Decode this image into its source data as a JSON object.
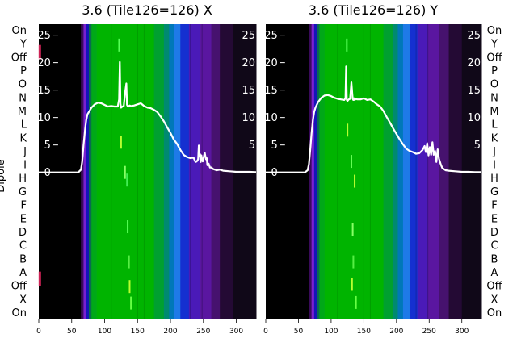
{
  "figure": {
    "ylabel_left": "Dipole"
  },
  "chart_data": [
    {
      "type": "heatmap",
      "title": "3.6 (Tile126=126) X",
      "row_labels": [
        "On",
        "Y",
        "Off",
        "P",
        "O",
        "N",
        "M",
        "L",
        "K",
        "J",
        "I",
        "H",
        "G",
        "F",
        "E",
        "D",
        "C",
        "B",
        "A",
        "Off",
        "X",
        "On"
      ],
      "xlim": [
        0,
        330
      ],
      "x_ticks": [
        0,
        50,
        100,
        150,
        200,
        250,
        300
      ],
      "overlay_ylim": [
        -26.8,
        27
      ],
      "overlay_y_ticks": [
        0,
        5,
        10,
        15,
        20,
        25
      ],
      "color_bands": [
        {
          "x0": 0,
          "x1": 64,
          "color": "#000000"
        },
        {
          "x0": 64,
          "x1": 68,
          "color": "#3a0a5a"
        },
        {
          "x0": 68,
          "x1": 72,
          "color": "#7a1fd0"
        },
        {
          "x0": 72,
          "x1": 76,
          "color": "#1515b8"
        },
        {
          "x0": 76,
          "x1": 80,
          "color": "#0a6a50"
        },
        {
          "x0": 80,
          "x1": 88,
          "color": "#00a818"
        },
        {
          "x0": 88,
          "x1": 175,
          "color": "#00b400"
        },
        {
          "x0": 175,
          "x1": 190,
          "color": "#00a030"
        },
        {
          "x0": 190,
          "x1": 198,
          "color": "#008a70"
        },
        {
          "x0": 198,
          "x1": 206,
          "color": "#0078b8"
        },
        {
          "x0": 206,
          "x1": 215,
          "color": "#1e7ae8"
        },
        {
          "x0": 215,
          "x1": 228,
          "color": "#1530d0"
        },
        {
          "x0": 228,
          "x1": 245,
          "color": "#4a1ab8"
        },
        {
          "x0": 245,
          "x1": 262,
          "color": "#5a16a0"
        },
        {
          "x0": 262,
          "x1": 275,
          "color": "#46126e"
        },
        {
          "x0": 275,
          "x1": 295,
          "color": "#240a34"
        },
        {
          "x0": 295,
          "x1": 330,
          "color": "#100818"
        }
      ],
      "overlay_line": {
        "color": "#ffffff",
        "x": [
          0,
          60,
          64,
          66,
          68,
          70,
          72,
          74,
          76,
          80,
          85,
          90,
          95,
          100,
          105,
          110,
          115,
          120,
          122,
          123,
          124,
          125,
          127,
          129,
          131,
          133,
          134,
          135,
          136,
          138,
          140,
          145,
          150,
          155,
          160,
          165,
          170,
          175,
          180,
          185,
          190,
          195,
          200,
          205,
          210,
          215,
          220,
          225,
          230,
          235,
          238,
          240,
          242,
          243,
          244,
          245,
          246,
          247,
          248,
          249,
          250,
          252,
          254,
          255,
          256,
          258,
          260,
          262,
          265,
          270,
          275,
          280,
          290,
          300,
          310,
          320,
          330
        ],
        "y": [
          0,
          0,
          0.5,
          2,
          5,
          7.5,
          9.5,
          10.6,
          11,
          11.8,
          12.4,
          12.7,
          12.6,
          12.3,
          12,
          12.1,
          12,
          12,
          13.3,
          20.1,
          12.5,
          11.8,
          12,
          12.1,
          14.5,
          16.2,
          12.3,
          12.1,
          12,
          12.2,
          12.1,
          12.2,
          12.4,
          12.6,
          12.1,
          11.8,
          11.7,
          11.4,
          11,
          10.2,
          9.3,
          8.2,
          7.2,
          6,
          5.2,
          4.1,
          3.2,
          2.8,
          2.6,
          2.7,
          1.9,
          2,
          2.4,
          4.9,
          2.9,
          3.3,
          1.9,
          3.1,
          2.2,
          2,
          2.5,
          3.6,
          2.4,
          2.6,
          1.3,
          1.6,
          0.9,
          0.9,
          0.6,
          0.4,
          0.5,
          0.3,
          0.2,
          0.1,
          0.1,
          0.1,
          0.05
        ]
      },
      "streak_marks": [
        {
          "x": 122,
          "y": 23.2,
          "color": "#55ff55"
        },
        {
          "x": 125,
          "y": 5.5,
          "color": "#b8ff30"
        },
        {
          "x": 131,
          "y": 0,
          "color": "#88ff66"
        },
        {
          "x": 134,
          "y": -1.4,
          "color": "#44ee55"
        },
        {
          "x": 135,
          "y": -9.9,
          "color": "#55ff55"
        },
        {
          "x": 137,
          "y": -16.3,
          "color": "#55ee44"
        },
        {
          "x": 138,
          "y": -20.8,
          "color": "#b8ff30"
        },
        {
          "x": 140,
          "y": -23.8,
          "color": "#66ff44"
        }
      ],
      "edge_marks": [
        {
          "x": 1,
          "y": 21.9,
          "color": "#cc2255"
        },
        {
          "x": 1,
          "y": -19.4,
          "color": "#cc2255"
        }
      ]
    },
    {
      "type": "heatmap",
      "title": "3.6 (Tile126=126) Y",
      "row_labels": [
        "On",
        "Y",
        "Off",
        "P",
        "O",
        "N",
        "M",
        "L",
        "K",
        "J",
        "I",
        "H",
        "G",
        "F",
        "E",
        "D",
        "C",
        "B",
        "A",
        "Off",
        "X",
        "On"
      ],
      "xlim": [
        0,
        330
      ],
      "x_ticks": [
        0,
        50,
        100,
        150,
        200,
        250,
        300
      ],
      "overlay_ylim": [
        -26.8,
        27
      ],
      "overlay_y_ticks": [
        0,
        5,
        10,
        15,
        20,
        25
      ],
      "color_bands": [
        {
          "x0": 0,
          "x1": 66,
          "color": "#000000"
        },
        {
          "x0": 66,
          "x1": 70,
          "color": "#3a0a5a"
        },
        {
          "x0": 70,
          "x1": 74,
          "color": "#7a1fd0"
        },
        {
          "x0": 74,
          "x1": 78,
          "color": "#1515b8"
        },
        {
          "x0": 78,
          "x1": 82,
          "color": "#0a6a50"
        },
        {
          "x0": 82,
          "x1": 90,
          "color": "#00a818"
        },
        {
          "x0": 90,
          "x1": 180,
          "color": "#00b400"
        },
        {
          "x0": 180,
          "x1": 194,
          "color": "#00a030"
        },
        {
          "x0": 194,
          "x1": 202,
          "color": "#008a70"
        },
        {
          "x0": 202,
          "x1": 210,
          "color": "#0078b8"
        },
        {
          "x0": 210,
          "x1": 220,
          "color": "#1e7ae8"
        },
        {
          "x0": 220,
          "x1": 232,
          "color": "#1530d0"
        },
        {
          "x0": 232,
          "x1": 248,
          "color": "#4a1ab8"
        },
        {
          "x0": 248,
          "x1": 265,
          "color": "#5a16a0"
        },
        {
          "x0": 265,
          "x1": 280,
          "color": "#46126e"
        },
        {
          "x0": 280,
          "x1": 300,
          "color": "#240a34"
        },
        {
          "x0": 300,
          "x1": 330,
          "color": "#100818"
        }
      ],
      "overlay_line": {
        "color": "#ffffff",
        "x": [
          0,
          60,
          64,
          66,
          68,
          70,
          72,
          74,
          76,
          80,
          85,
          90,
          95,
          100,
          105,
          110,
          115,
          120,
          122,
          123,
          124,
          125,
          127,
          129,
          131,
          133,
          134,
          135,
          136,
          138,
          140,
          145,
          150,
          155,
          160,
          165,
          170,
          175,
          180,
          185,
          190,
          195,
          200,
          205,
          210,
          215,
          220,
          225,
          230,
          235,
          240,
          243,
          245,
          247,
          249,
          251,
          253,
          255,
          257,
          259,
          261,
          263,
          265,
          268,
          270,
          275,
          280,
          290,
          300,
          310,
          320,
          330
        ],
        "y": [
          0,
          0,
          0.4,
          1.5,
          4,
          7,
          9.5,
          11,
          11.8,
          12.8,
          13.6,
          14,
          14.1,
          13.9,
          13.6,
          13.4,
          13.3,
          13.2,
          13.5,
          19.3,
          13.2,
          13,
          13.3,
          13.4,
          16.4,
          13.4,
          13.2,
          13.5,
          13.2,
          13.4,
          13.3,
          13.3,
          13.5,
          13.2,
          13.3,
          12.9,
          12.4,
          12,
          11.2,
          10.1,
          9.1,
          8,
          7,
          6,
          5.1,
          4.3,
          3.9,
          3.7,
          3.4,
          3.5,
          4.1,
          4.8,
          3.7,
          5.3,
          3.1,
          4.6,
          3.2,
          5.5,
          3.2,
          3.9,
          1.9,
          4.2,
          2.5,
          1.4,
          0.8,
          0.4,
          0.3,
          0.2,
          0.1,
          0.1,
          0.05,
          0.05
        ]
      },
      "streak_marks": [
        {
          "x": 124,
          "y": 23.2,
          "color": "#55ff55"
        },
        {
          "x": 125,
          "y": 7.7,
          "color": "#b8ff30"
        },
        {
          "x": 131,
          "y": 2,
          "color": "#66ff55"
        },
        {
          "x": 136,
          "y": -1.6,
          "color": "#b8ff30"
        },
        {
          "x": 133,
          "y": -10.4,
          "color": "#88ff66"
        },
        {
          "x": 134,
          "y": -16.3,
          "color": "#55ee44"
        },
        {
          "x": 132,
          "y": -20.4,
          "color": "#b8ff30"
        },
        {
          "x": 138,
          "y": -23.7,
          "color": "#66ff44"
        }
      ],
      "edge_marks": []
    }
  ]
}
